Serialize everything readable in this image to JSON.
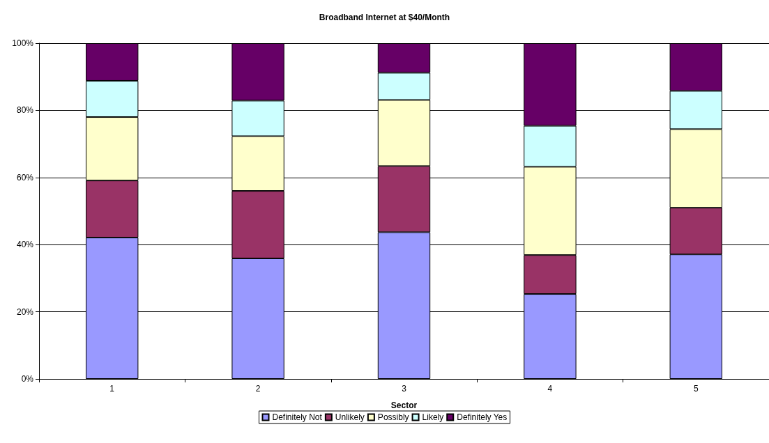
{
  "chart_data": {
    "type": "bar",
    "title": "Broadband Internet at $40/Month",
    "xlabel": "Sector",
    "categories": [
      "1",
      "2",
      "3",
      "4",
      "5"
    ],
    "stacked": true,
    "grid": "y",
    "legend": "bottom",
    "ylim": [
      0,
      100
    ],
    "yticks": [
      {
        "value": 0,
        "label": "0%"
      },
      {
        "value": 20,
        "label": "20%"
      },
      {
        "value": 40,
        "label": "40%"
      },
      {
        "value": 60,
        "label": "60%"
      },
      {
        "value": 80,
        "label": "80%"
      },
      {
        "value": 100,
        "label": "100%"
      }
    ],
    "series": [
      {
        "name": "Definitely Not",
        "color": "#9999ff",
        "values": [
          42.1,
          35.9,
          43.7,
          25.3,
          37.1
        ]
      },
      {
        "name": "Unlikely",
        "color": "#993366",
        "values": [
          17.0,
          20.1,
          19.7,
          11.6,
          13.9
        ]
      },
      {
        "name": "Possibly",
        "color": "#ffffcc",
        "values": [
          18.9,
          16.3,
          19.7,
          26.3,
          23.4
        ]
      },
      {
        "name": "Likely",
        "color": "#ccffff",
        "values": [
          10.8,
          10.6,
          8.1,
          12.2,
          11.4
        ]
      },
      {
        "name": "Definitely Yes",
        "color": "#660066",
        "values": [
          11.2,
          17.1,
          8.8,
          24.6,
          14.2
        ]
      }
    ]
  }
}
